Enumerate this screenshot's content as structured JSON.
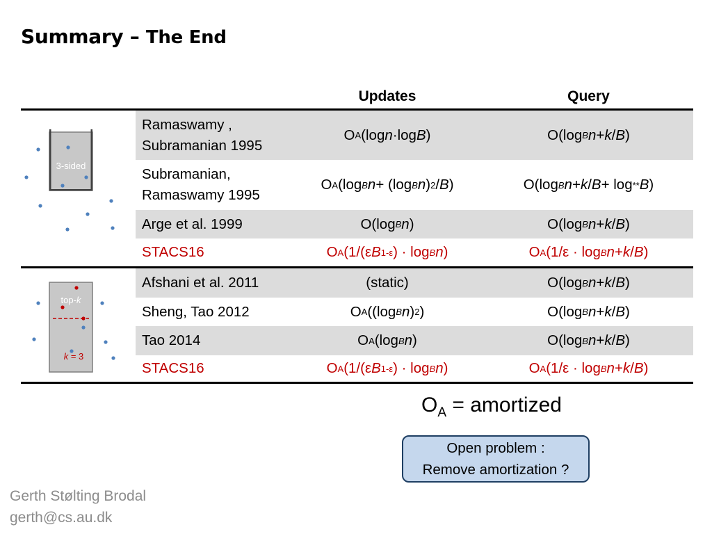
{
  "title": {
    "part1": "Summary",
    "dash": "–",
    "part2": "The End"
  },
  "headers": {
    "updates": "Updates",
    "query": "Query"
  },
  "rows": [
    {
      "name_lines": [
        "Ramaswamy ,",
        "Subramanian 1995"
      ],
      "updates_html": "O<sub>A</sub>(log <i>n</i>·log <i>B</i>)",
      "query_html": "O(log<sub><i>B</i></sub> <i>n</i> + <i>k</i>/<i>B</i>)",
      "highlight": false
    },
    {
      "name_lines": [
        "Subramanian,",
        "Ramaswamy 1995"
      ],
      "updates_html": "O<sub>A</sub>(log<sub><i>B</i></sub> <i>n</i> + (log<sub><i>B</i></sub> <i>n</i>)<sup>2</sup>/<i>B</i>)",
      "query_html": "O(log<sub><i>B</i></sub> <i>n</i> + <i>k</i>/<i>B</i> + log<sup>**</sup> <i>B</i>)",
      "highlight": false
    },
    {
      "name_lines": [
        "Arge et al. 1999"
      ],
      "updates_html": "O(log<sub><i>B</i></sub> <i>n</i>)",
      "query_html": "O(log<sub><i>B</i></sub> <i>n</i> + <i>k</i>/<i>B</i>)",
      "highlight": false
    },
    {
      "name_lines": [
        "STACS16"
      ],
      "updates_html": "O<sub>A</sub>(1/(ε<i>B</i><sup>1-ε</sup>) · log<sub><i>B</i></sub> <i>n</i>)",
      "query_html": "O<sub>A</sub> (1/ε · log<sub><i>B</i></sub> <i>n</i> + <i>k</i>/<i>B</i>)",
      "highlight": true
    },
    {
      "name_lines": [
        "Afshani et al. 2011"
      ],
      "updates_html": "(static)",
      "query_html": "O(log<sub><i>B</i></sub> <i>n</i> + <i>k</i>/<i>B</i>)",
      "highlight": false
    },
    {
      "name_lines": [
        "Sheng, Tao 2012"
      ],
      "updates_html": "O<sub>A</sub>((log<sub><i>B</i></sub> <i>n</i>)<sup>2</sup>)",
      "query_html": "O(log<sub><i>B</i></sub> <i>n</i> + <i>k</i>/<i>B</i>)",
      "highlight": false
    },
    {
      "name_lines": [
        "Tao 2014"
      ],
      "updates_html": "O<sub>A</sub>(log<sub><i>B</i></sub> <i>n</i>)",
      "query_html": "O(log<sub><i>B</i></sub> <i>n</i> + <i>k</i>/<i>B</i>)",
      "highlight": false
    },
    {
      "name_lines": [
        "STACS16"
      ],
      "updates_html": "O<sub>A</sub>(1/(ε<i>B</i><sup>1-ε</sup>) · log<sub><i>B</i></sub> <i>n</i>)",
      "query_html": "O<sub>A</sub>(1/ε · log<sub><i>B</i></sub> <i>n</i> + <i>k</i>/<i>B</i>)",
      "highlight": true
    }
  ],
  "illustration": {
    "three_sided_label": "3-sided",
    "topk_label_prefix": "top-",
    "topk_label_var": "k",
    "k_label_var": "k",
    "k_label_rest": " = 3"
  },
  "amortized_note": {
    "symbol": "O",
    "subscript": "A",
    "rest": " = amortized"
  },
  "open_problem": {
    "line1": "Open problem :",
    "line2": "Remove amortization ?"
  },
  "author": {
    "name": "Gerth Stølting Brodal",
    "email": "gerth@cs.au.dk"
  },
  "colors": {
    "highlight_red": "#c00000",
    "row_shade": "#dcdcdc",
    "point_blue": "#4f81bd",
    "point_red": "#c00000",
    "problem_fill": "#c5d7ed",
    "problem_border": "#1f3f63",
    "author_gray": "#8c8c8c"
  }
}
